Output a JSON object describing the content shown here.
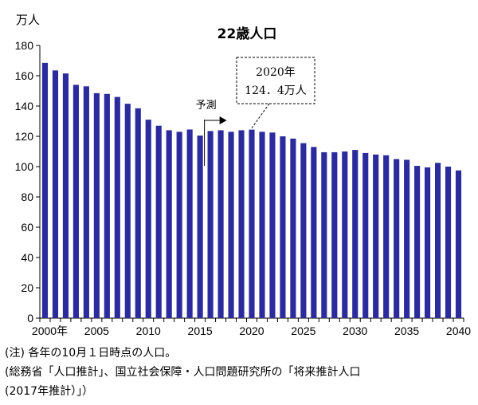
{
  "chart_data": {
    "type": "bar",
    "title": "22歳人口",
    "ylabel": "万人",
    "ylim": [
      0,
      180
    ],
    "yticks": [
      0,
      20,
      40,
      60,
      80,
      100,
      120,
      140,
      160,
      180
    ],
    "x": [
      2000,
      2001,
      2002,
      2003,
      2004,
      2005,
      2006,
      2007,
      2008,
      2009,
      2010,
      2011,
      2012,
      2013,
      2014,
      2015,
      2016,
      2017,
      2018,
      2019,
      2020,
      2021,
      2022,
      2023,
      2024,
      2025,
      2026,
      2027,
      2028,
      2029,
      2030,
      2031,
      2032,
      2033,
      2034,
      2035,
      2036,
      2037,
      2038,
      2039,
      2040
    ],
    "values": [
      168.5,
      163.5,
      161.5,
      154,
      153,
      148.5,
      148,
      146,
      141.5,
      138.5,
      131,
      127,
      124,
      123,
      124.5,
      120.5,
      123.5,
      124,
      123,
      124,
      124.4,
      123,
      122.5,
      120,
      118.5,
      115.5,
      113,
      109.5,
      109.5,
      110,
      111,
      109,
      108,
      107.5,
      105,
      104.5,
      100.5,
      99.5,
      102.5,
      100,
      97.5
    ],
    "xtick_labels": [
      {
        "year": 2000,
        "label": "2000年"
      },
      {
        "year": 2005,
        "label": "2005"
      },
      {
        "year": 2010,
        "label": "2010"
      },
      {
        "year": 2015,
        "label": "2015"
      },
      {
        "year": 2020,
        "label": "2020"
      },
      {
        "year": 2025,
        "label": "2025"
      },
      {
        "year": 2030,
        "label": "2030"
      },
      {
        "year": 2035,
        "label": "2035"
      },
      {
        "year": 2040,
        "label": "2040"
      }
    ],
    "forecast": {
      "label": "予測",
      "start_year": 2016
    },
    "callout": {
      "year": 2020,
      "line1": "2020年",
      "line2": "124．4万人"
    },
    "bar_color": "#2b2b9e",
    "grid": false
  },
  "notes": {
    "line1": "(注) 各年の10月１日時点の人口。",
    "line2": "(総務省「人口推計」、国立社会保障・人口問題研究所の「将来推計人口",
    "line3": "(2017年推計）」）"
  }
}
